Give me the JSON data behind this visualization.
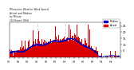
{
  "background_color": "#ffffff",
  "bar_color": "#dd0000",
  "line_color": "#0000bb",
  "ylim": [
    0,
    28
  ],
  "ytick_values": [
    5,
    10,
    15,
    20,
    25
  ],
  "legend_median_label": "Median",
  "legend_actual_label": "Actual",
  "vline_color": "#bbbbbb",
  "seed": 7
}
